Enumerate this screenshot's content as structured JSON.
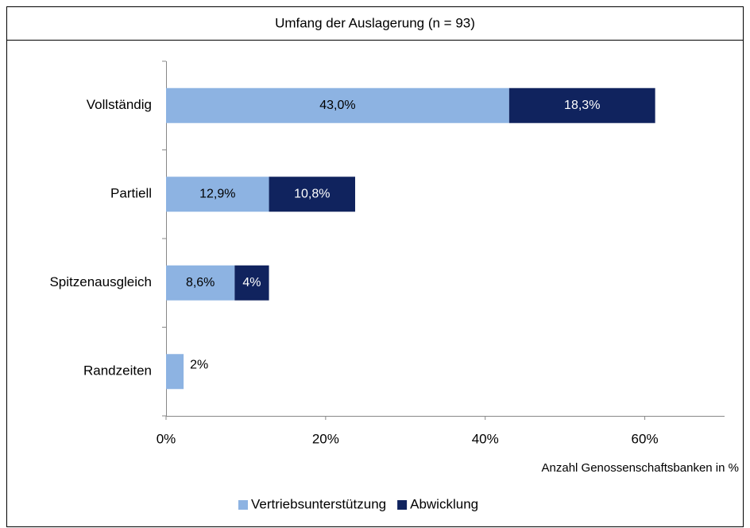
{
  "chart_data": {
    "type": "stacked_bar_horizontal",
    "title": "Umfang der Auslagerung (n = 93)",
    "x_label": "Anzahl Genossenschaftsbanken in %",
    "categories": [
      "Vollständig",
      "Partiell",
      "Spitzenausgleich",
      "Randzeiten"
    ],
    "series": [
      {
        "name": "Vertriebsunterstützung",
        "color": "#8db3e2",
        "values": [
          43.0,
          12.9,
          8.6,
          2.2
        ],
        "value_labels": [
          "43,0%",
          "12,9%",
          "8,6%",
          "2%"
        ]
      },
      {
        "name": "Abwicklung",
        "color": "#10235e",
        "values": [
          18.3,
          10.8,
          4.3,
          null
        ],
        "value_labels": [
          "18,3%",
          "10,8%",
          "4%",
          null
        ]
      }
    ],
    "xlim": [
      0,
      70
    ],
    "xticks": [
      {
        "value": 0,
        "label": "0%"
      },
      {
        "value": 20,
        "label": "20%"
      },
      {
        "value": 40,
        "label": "40%"
      },
      {
        "value": 60,
        "label": "60%"
      }
    ],
    "legend": "bottom"
  }
}
